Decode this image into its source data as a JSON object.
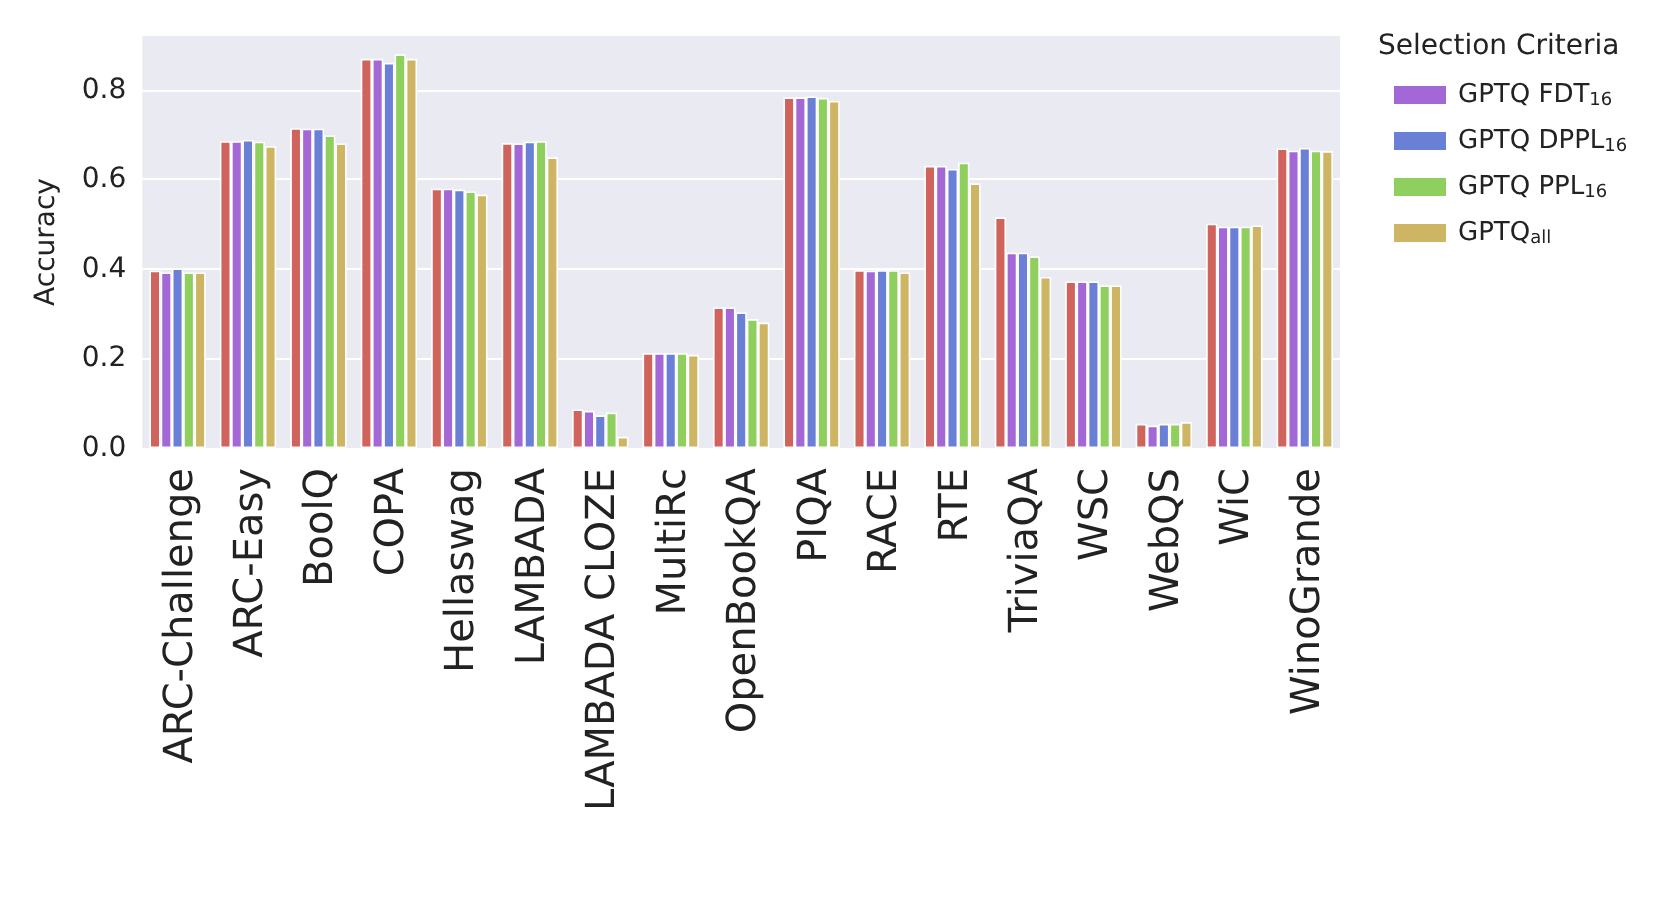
{
  "chart_data": {
    "type": "bar",
    "ylabel": "Accuracy",
    "legend_title": "Selection Criteria",
    "legend": "top right",
    "grid": "y",
    "categories": [
      "ARC-Challenge",
      "ARC-Easy",
      "BoolQ",
      "COPA",
      "Hellaswag",
      "LAMBADA",
      "LAMBADA CLOZE",
      "MultiRc",
      "OpenBookQA",
      "PIQA",
      "RACE",
      "RTE",
      "TriviaQA",
      "WSC",
      "WebQS",
      "WiC",
      "WinoGrande"
    ],
    "ylim": [
      0,
      0.92
    ],
    "yticks": [
      {
        "value": 0,
        "label": "0.0"
      },
      {
        "value": 0.2,
        "label": "0.2"
      },
      {
        "value": 0.4,
        "label": "0.4"
      },
      {
        "value": 0.6,
        "label": "0.6"
      },
      {
        "value": 0.8,
        "label": "0.8"
      }
    ],
    "series": [
      {
        "color": "#d0635b",
        "values": [
          0.396,
          0.685,
          0.714,
          0.869,
          0.579,
          0.681,
          0.086,
          0.212,
          0.314,
          0.783,
          0.397,
          0.63,
          0.515,
          0.372,
          0.054,
          0.501,
          0.669
        ]
      },
      {
        "name": "GPTQ FDT$_{16}$",
        "color": "#a367d6",
        "values": [
          0.392,
          0.685,
          0.713,
          0.869,
          0.579,
          0.68,
          0.083,
          0.212,
          0.314,
          0.783,
          0.396,
          0.63,
          0.436,
          0.372,
          0.05,
          0.494,
          0.664
        ]
      },
      {
        "name": "GPTQ DPPL$_{16}$",
        "color": "#6a7fd6",
        "values": [
          0.401,
          0.688,
          0.713,
          0.86,
          0.577,
          0.684,
          0.073,
          0.212,
          0.303,
          0.785,
          0.397,
          0.623,
          0.436,
          0.372,
          0.054,
          0.494,
          0.67
        ]
      },
      {
        "name": "GPTQ PPL$_{16}$",
        "color": "#8fcf5e",
        "values": [
          0.392,
          0.684,
          0.698,
          0.879,
          0.573,
          0.685,
          0.079,
          0.212,
          0.288,
          0.782,
          0.397,
          0.637,
          0.428,
          0.363,
          0.054,
          0.494,
          0.664
        ]
      },
      {
        "name": "GPTQ$_{all}$",
        "color": "#cdb563",
        "values": [
          0.392,
          0.674,
          0.68,
          0.869,
          0.566,
          0.649,
          0.025,
          0.208,
          0.28,
          0.775,
          0.392,
          0.591,
          0.382,
          0.363,
          0.058,
          0.497,
          0.663
        ]
      }
    ]
  }
}
